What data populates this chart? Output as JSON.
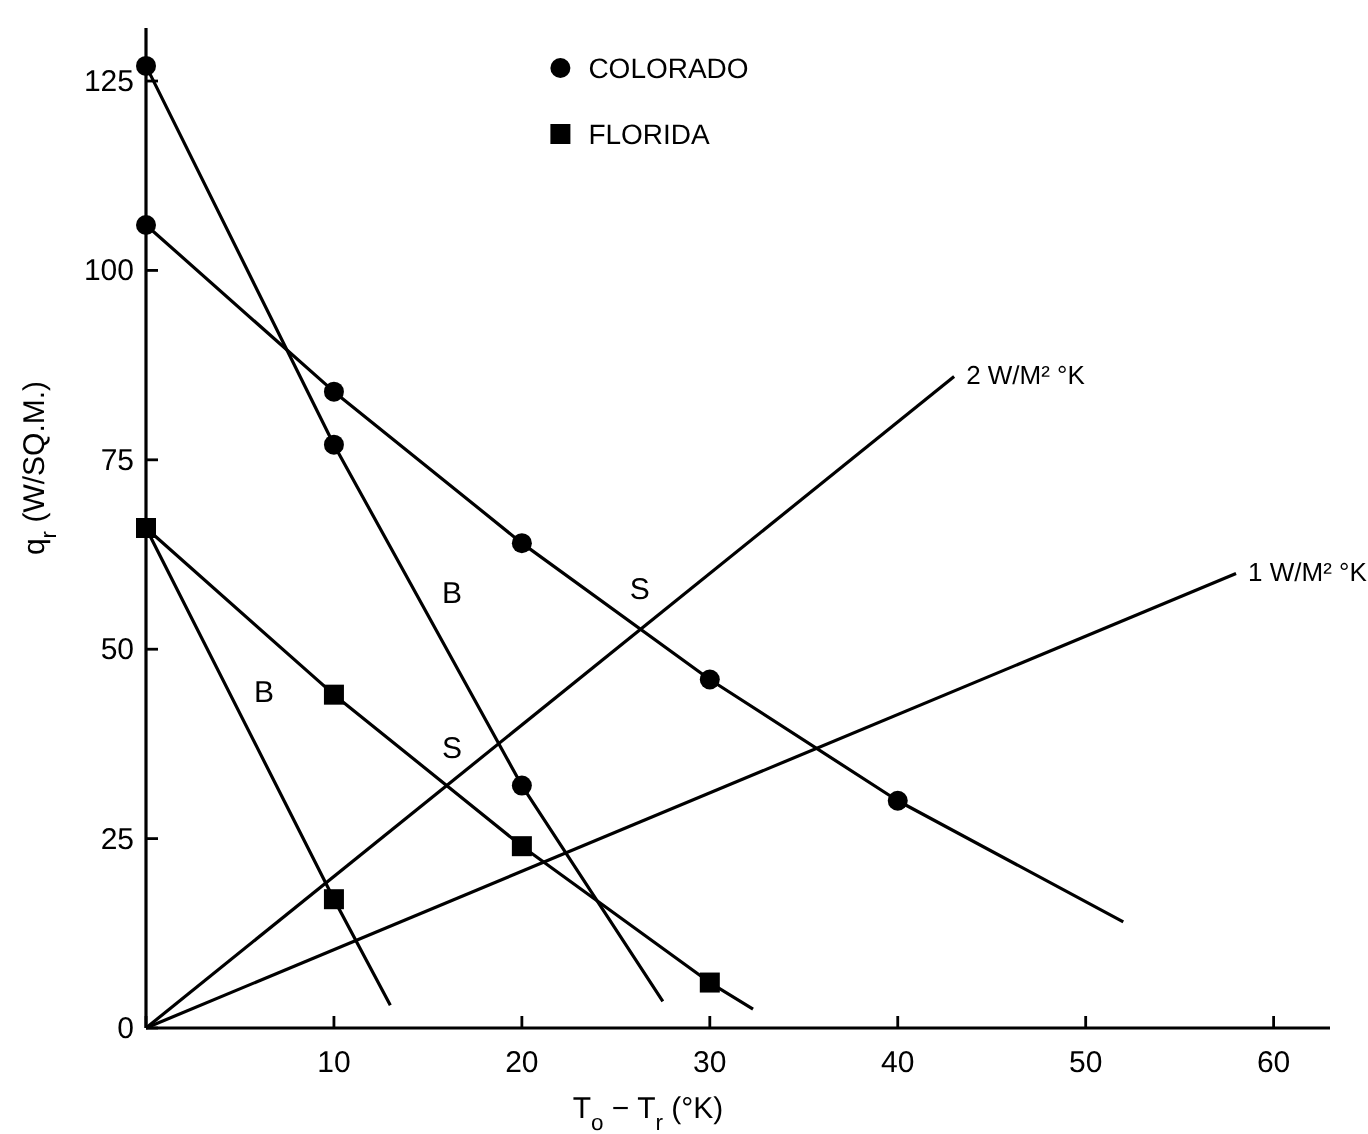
{
  "chart_data": {
    "type": "scatter",
    "xlabel": "T$_{o}$ − T$_{r}$  (°K)",
    "ylabel": "q$_{r}$  (W/SQ.M.)",
    "xlim": [
      0,
      63
    ],
    "ylim": [
      0,
      132
    ],
    "xticks": [
      {
        "value": 0,
        "label": null
      },
      10,
      20,
      30,
      40,
      50,
      60
    ],
    "yticks": [
      0,
      25,
      50,
      75,
      100,
      125
    ],
    "grid": false,
    "legend": "top",
    "series": [
      {
        "name": "COLORADO",
        "marker": "circle",
        "color": "#000000",
        "x": [
          0,
          10,
          20,
          30,
          40,
          0,
          10,
          20
        ],
        "values": [
          106,
          84,
          64,
          46,
          30,
          127,
          77,
          32
        ]
      },
      {
        "name": "FLORIDA",
        "marker": "square",
        "color": "#000000",
        "x": [
          0,
          10,
          20,
          30,
          10
        ],
        "values": [
          66,
          44,
          24,
          6,
          17
        ]
      },
      {
        "type": "line",
        "marker": "none",
        "color": "#000000",
        "x": [
          0,
          10,
          20,
          30,
          40,
          52
        ],
        "values": [
          106,
          84,
          64,
          46,
          30,
          14
        ]
      },
      {
        "type": "line",
        "marker": "none",
        "color": "#000000",
        "x": [
          0,
          10,
          20,
          27.5
        ],
        "values": [
          127,
          77,
          32,
          3.5
        ]
      },
      {
        "type": "line",
        "marker": "none",
        "color": "#000000",
        "x": [
          0,
          10,
          20,
          30,
          32.3
        ],
        "values": [
          66,
          44,
          24,
          6,
          2.5
        ]
      },
      {
        "type": "line",
        "marker": "none",
        "color": "#000000",
        "x": [
          0,
          10,
          13
        ],
        "values": [
          66,
          17,
          3
        ]
      },
      {
        "name": "2 W/M² °K",
        "type": "line",
        "marker": "none",
        "color": "#000000",
        "x": [
          0,
          43
        ],
        "values": [
          0,
          86
        ]
      },
      {
        "name": "1 W/M² °K",
        "type": "line",
        "marker": "none",
        "color": "#000000",
        "x": [
          0,
          58
        ],
        "values": [
          0,
          60
        ]
      }
    ],
    "annotations": [
      {
        "text": "B",
        "x": 15,
        "y": 54.5
      },
      {
        "text": "S",
        "x": 25,
        "y": 55
      },
      {
        "text": "B",
        "x": 5,
        "y": 41.5
      },
      {
        "text": "S",
        "x": 15,
        "y": 34
      }
    ]
  }
}
